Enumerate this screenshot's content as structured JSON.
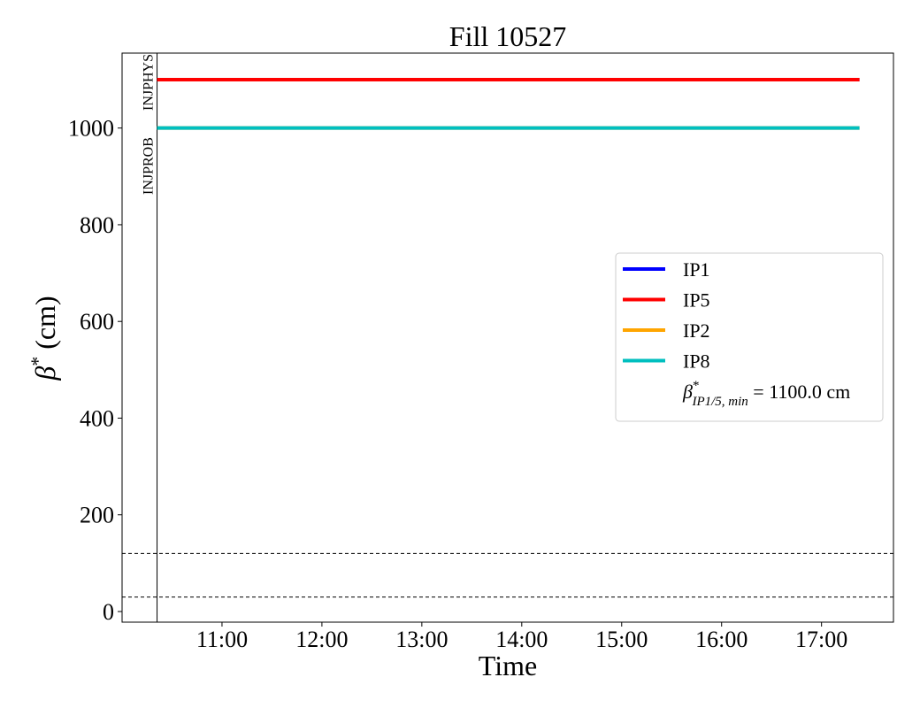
{
  "chart_data": {
    "type": "line",
    "title": "Fill 10527",
    "xlabel": "Time",
    "ylabel_symbol": "β",
    "ylabel_sup": "*",
    "ylabel_unit": "(cm)",
    "x_ticks": [
      "11:00",
      "12:00",
      "13:00",
      "14:00",
      "15:00",
      "16:00",
      "17:00"
    ],
    "x_tick_hours": [
      11,
      12,
      13,
      14,
      15,
      16,
      17
    ],
    "xlim_hours": [
      10.0,
      17.72
    ],
    "y_ticks": [
      0,
      200,
      400,
      600,
      800,
      1000
    ],
    "ylim": [
      -22,
      1155
    ],
    "grid": false,
    "legend_position": "center-right",
    "series": [
      {
        "name": "IP1",
        "color": "#0000ff",
        "x_hours": [
          10.35,
          17.38
        ],
        "y": [
          1100,
          1100
        ]
      },
      {
        "name": "IP5",
        "color": "#ff0000",
        "x_hours": [
          10.35,
          17.38
        ],
        "y": [
          1100,
          1100
        ]
      },
      {
        "name": "IP2",
        "color": "#ffa500",
        "x_hours": [
          10.35,
          17.38
        ],
        "y": [
          1000,
          1000
        ]
      },
      {
        "name": "IP8",
        "color": "#00bfbf",
        "x_hours": [
          10.35,
          17.38
        ],
        "y": [
          1000,
          1000
        ]
      }
    ],
    "legend_extra": {
      "symbol": "β",
      "sup": "*",
      "sub": "IP1/5, min",
      "text": " = 1100.0 cm"
    },
    "hlines": [
      120,
      30
    ],
    "vlines": [
      {
        "x_hours": 10.35,
        "labels": [
          "INJPROB",
          "INJPHYS"
        ]
      }
    ]
  }
}
